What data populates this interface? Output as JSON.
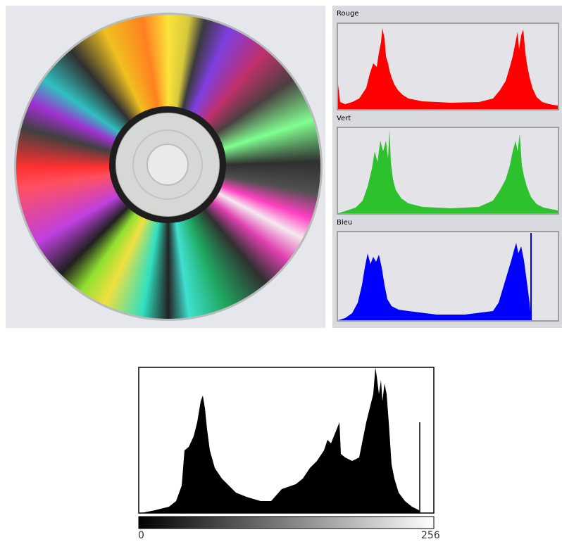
{
  "color_histograms": {
    "red_label": "Rouge",
    "green_label": "Vert",
    "blue_label": "Bleu"
  },
  "luminance_histogram": {
    "axis_min_label": 0,
    "axis_max_label": 256
  }
}
